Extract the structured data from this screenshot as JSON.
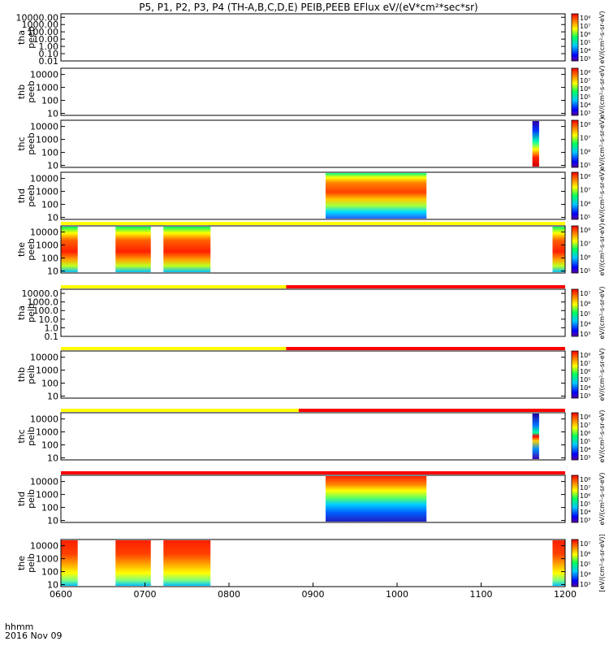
{
  "title": "P5, P1, P2, P3, P4 (TH-A,B,C,D,E) PEIB,PEEB EFlux eV/(eV*cm²*sec*sr)",
  "x_axis": {
    "title": "hhmm",
    "date": "2016 Nov 09",
    "range": [
      600,
      1200
    ],
    "tick_values": [
      600,
      700,
      800,
      900,
      1000,
      1100,
      1200
    ],
    "tick_labels": [
      "0600",
      "0700",
      "0800",
      "0900",
      "1000",
      "1100",
      "1200"
    ]
  },
  "colors": {
    "mode_yellow": "#ffff00",
    "mode_red": "#ff0000",
    "colorscale": [
      "#7000a0",
      "#0000ff",
      "#00c8ff",
      "#00ff80",
      "#ffff00",
      "#ff8000",
      "#ff0000"
    ]
  },
  "chart_data": [
    {
      "type": "heatmap",
      "probe": "tha",
      "ylabel": "tha\npeeb",
      "yscale": "log",
      "ylim": [
        0.01,
        30000
      ],
      "yticks": [
        "10000.00",
        "1000.00",
        "100.00",
        "10.00",
        "1.00",
        "0.10",
        "0.01"
      ],
      "colorbar": {
        "label": "eV/(cm²-s-sr-eV)",
        "ticks": [
          "10⁸",
          "10⁷",
          "10⁶",
          "10⁵",
          "10⁴",
          "10³"
        ]
      },
      "data_intervals": [],
      "mode_bar": []
    },
    {
      "type": "heatmap",
      "probe": "thb",
      "ylabel": "thb\npeeb",
      "yscale": "log",
      "ylim": [
        7,
        30000
      ],
      "yticks": [
        "10000",
        "1000",
        "100",
        "10"
      ],
      "colorbar": {
        "label": "eV/(cm²-s-sr-eV)",
        "ticks": [
          "10⁸",
          "10⁷",
          "10⁶",
          "10⁵",
          "10⁴",
          "10³"
        ]
      },
      "data_intervals": [],
      "mode_bar": []
    },
    {
      "type": "heatmap",
      "probe": "thc",
      "ylabel": "thc\npeeb",
      "yscale": "log",
      "ylim": [
        7,
        30000
      ],
      "yticks": [
        "10000",
        "1000",
        "100",
        "10"
      ],
      "colorbar": {
        "label": "eV/(cm²-s-sr-eV)",
        "ticks": [
          "10⁸",
          "10⁷",
          "10⁶",
          "10⁵"
        ]
      },
      "data_intervals": [
        {
          "start": 1161,
          "end": 1169,
          "pattern": "thc-e"
        }
      ],
      "mode_bar": []
    },
    {
      "type": "heatmap",
      "probe": "thd",
      "ylabel": "thd\npeeb",
      "yscale": "log",
      "ylim": [
        7,
        30000
      ],
      "yticks": [
        "10000",
        "1000",
        "100",
        "10"
      ],
      "colorbar": {
        "label": "eV/(cm²-s-sr-eV)",
        "ticks": [
          "10⁸",
          "10⁷",
          "10⁶",
          "10⁵"
        ]
      },
      "data_intervals": [
        {
          "start": 915,
          "end": 1035,
          "pattern": "thd-e"
        }
      ],
      "mode_bar": []
    },
    {
      "type": "heatmap",
      "probe": "the",
      "ylabel": "the\npeeb",
      "yscale": "log",
      "ylim": [
        7,
        30000
      ],
      "yticks": [
        "10000",
        "1000",
        "100",
        "10"
      ],
      "colorbar": {
        "label": "eV/(cm²-s-sr-eV)",
        "ticks": [
          "10⁸",
          "10⁷",
          "10⁶",
          "10⁵"
        ]
      },
      "data_intervals": [
        {
          "start": 600,
          "end": 620,
          "pattern": "the-e"
        },
        {
          "start": 665,
          "end": 707,
          "pattern": "the-e"
        },
        {
          "start": 722,
          "end": 778,
          "pattern": "the-e"
        },
        {
          "start": 1185,
          "end": 1200,
          "pattern": "the-e"
        }
      ],
      "mode_bar": [
        {
          "start": 600,
          "end": 1200,
          "color": "yellow"
        }
      ]
    },
    {
      "type": "heatmap",
      "probe": "tha",
      "ylabel": "tha\npeib",
      "yscale": "log",
      "ylim": [
        0.1,
        30000
      ],
      "yticks": [
        "10000.0",
        "1000.0",
        "100.0",
        "10.0",
        "1.0",
        "0.1"
      ],
      "colorbar": {
        "label": "eV/(cm²-s-sr-eV)",
        "ticks": [
          "10⁷",
          "10⁶",
          "10⁵",
          "10⁴",
          "10³"
        ]
      },
      "data_intervals": [],
      "mode_bar": [
        {
          "start": 600,
          "end": 868,
          "color": "yellow"
        },
        {
          "start": 868,
          "end": 1200,
          "color": "red"
        }
      ]
    },
    {
      "type": "heatmap",
      "probe": "thb",
      "ylabel": "thb\npeib",
      "yscale": "log",
      "ylim": [
        7,
        30000
      ],
      "yticks": [
        "10000",
        "1000",
        "100",
        "10"
      ],
      "colorbar": {
        "label": "eV/(cm²-s-sr-eV)",
        "ticks": [
          "10⁸",
          "10⁷",
          "10⁶",
          "10⁵",
          "10⁴",
          "10³"
        ]
      },
      "data_intervals": [],
      "mode_bar": [
        {
          "start": 600,
          "end": 868,
          "color": "yellow"
        },
        {
          "start": 868,
          "end": 1200,
          "color": "red"
        }
      ]
    },
    {
      "type": "heatmap",
      "probe": "thc",
      "ylabel": "thc\npeib",
      "yscale": "log",
      "ylim": [
        7,
        30000
      ],
      "yticks": [
        "10000",
        "1000",
        "100",
        "10"
      ],
      "colorbar": {
        "label": "eV/(cm²-s-sr-eV)",
        "ticks": [
          "10⁸",
          "10⁷",
          "10⁶",
          "10⁵",
          "10⁴",
          "10³"
        ]
      },
      "data_intervals": [
        {
          "start": 1161,
          "end": 1169,
          "pattern": "thc-i"
        }
      ],
      "mode_bar": [
        {
          "start": 600,
          "end": 883,
          "color": "yellow"
        },
        {
          "start": 883,
          "end": 1200,
          "color": "red"
        }
      ]
    },
    {
      "type": "heatmap",
      "probe": "thd",
      "ylabel": "thd\npeib",
      "yscale": "log",
      "ylim": [
        7,
        30000
      ],
      "yticks": [
        "10000",
        "1000",
        "100",
        "10"
      ],
      "colorbar": {
        "label": "eV/(cm²-s-sr-eV)",
        "ticks": [
          "10⁸",
          "10⁷",
          "10⁶",
          "10⁵",
          "10⁴",
          "10³"
        ]
      },
      "data_intervals": [
        {
          "start": 915,
          "end": 1035,
          "pattern": "thd-i"
        }
      ],
      "mode_bar": [
        {
          "start": 600,
          "end": 1200,
          "color": "red"
        }
      ]
    },
    {
      "type": "heatmap",
      "probe": "the",
      "ylabel": "the\npeib",
      "yscale": "log",
      "ylim": [
        7,
        30000
      ],
      "yticks": [
        "10000",
        "1000",
        "100",
        "10"
      ],
      "colorbar": {
        "label": "[eV/(cm²-s-sr-eV)]",
        "ticks": [
          "10⁷",
          "10⁶",
          "10⁵",
          "10⁴",
          "10³"
        ]
      },
      "data_intervals": [
        {
          "start": 600,
          "end": 620,
          "pattern": "the-i"
        },
        {
          "start": 665,
          "end": 707,
          "pattern": "the-i"
        },
        {
          "start": 722,
          "end": 778,
          "pattern": "the-i"
        },
        {
          "start": 1185,
          "end": 1200,
          "pattern": "the-i"
        }
      ],
      "mode_bar": []
    }
  ]
}
